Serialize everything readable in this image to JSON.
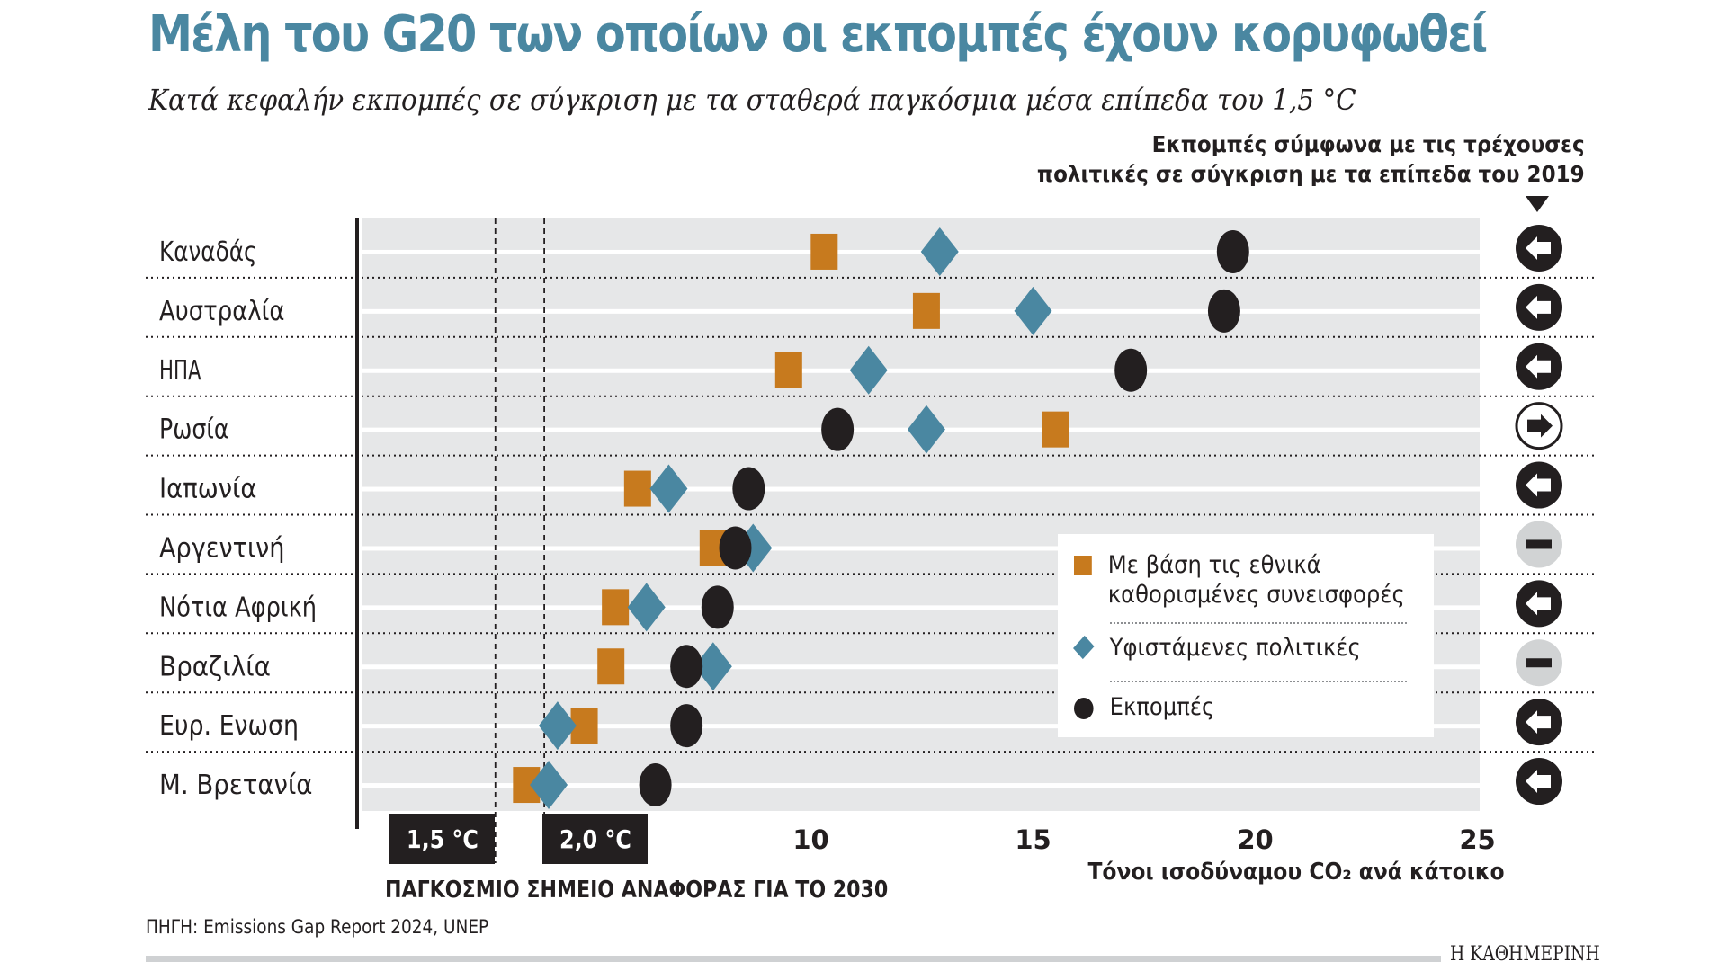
{
  "header": {
    "title": "Μέλη του G20 των οποίων οι εκπομπές έχουν κορυφωθεί",
    "subtitle": "Κατά κεφαλήν εκπομπές σε σύγκριση με τα σταθερά παγκόσμια μέσα επίπεδα του 1,5 °C",
    "right_header_line1": "Εκπομπές σύμφωνα με τις τρέχουσες",
    "right_header_line2": "πολιτικές σε σύγκριση με τα επίπεδα του 2019"
  },
  "colors": {
    "title": "#4a87a1",
    "ndc": "#c77a1e",
    "policies": "#4a87a1",
    "emissions": "#231f20",
    "plot_bg": "#e6e7e8",
    "neutral_icon": "#d1d3d4"
  },
  "chart_data": {
    "type": "scatter",
    "title": "Μέλη του G20 των οποίων οι εκπομπές έχουν κορυφωθεί",
    "subtitle": "Κατά κεφαλήν εκπομπές σε σύγκριση με τα σταθερά παγκόσμια μέσα επίπεδα του 1,5 °C",
    "xlabel": "Τόνοι ισοδύναμου CO₂ ανά κάτοικο",
    "ylabel": "",
    "xlim": [
      0,
      25
    ],
    "xticks": [
      10,
      15,
      20,
      25
    ],
    "grid": true,
    "legend_position": "middle-right",
    "categories": [
      "Καναδάς",
      "Αυστραλία",
      "ΗΠΑ",
      "Ρωσία",
      "Ιαπωνία",
      "Αργεντινή",
      "Νότια Αφρική",
      "Βραζιλία",
      "Ευρ. Ενωση",
      "Μ. Βρετανία"
    ],
    "series": [
      {
        "name": "Με βάση τις εθνικά καθορισμένες συνεισφορές",
        "marker": "square",
        "color": "#c77a1e",
        "values": [
          10.3,
          12.6,
          9.5,
          15.5,
          6.1,
          7.8,
          5.6,
          5.5,
          4.9,
          3.6
        ]
      },
      {
        "name": "Υφιστάμενες πολιτικές",
        "marker": "diamond",
        "color": "#4a87a1",
        "values": [
          12.9,
          15.0,
          11.3,
          12.6,
          6.8,
          8.7,
          6.3,
          7.8,
          4.3,
          4.1
        ]
      },
      {
        "name": "Εκπομπές",
        "marker": "circle",
        "color": "#231f20",
        "values": [
          19.5,
          19.3,
          17.2,
          10.6,
          8.6,
          8.3,
          7.9,
          7.2,
          7.2,
          6.5
        ]
      }
    ],
    "reference_lines": [
      {
        "label": "1,5 °C",
        "value": 2.9
      },
      {
        "label": "2,0 °C",
        "value": 4.0
      }
    ],
    "reference_caption": "ΠΑΓΚΟΣΜΙΟ ΣΗΜΕΙΟ ΑΝΑΦΟΡΑΣ ΓΙΑ ΤΟ 2030",
    "trend_vs_2019": [
      "decrease",
      "decrease",
      "decrease",
      "increase",
      "decrease",
      "stable",
      "decrease",
      "stable",
      "decrease",
      "decrease"
    ],
    "trend_icons": {
      "decrease": "arrow-left-icon",
      "increase": "arrow-right-icon",
      "stable": "minus-icon"
    }
  },
  "legend": {
    "ndc_line1": "Με βάση τις εθνικά",
    "ndc_line2": "καθορισμένες συνεισφορές",
    "policies": "Υφιστάμενες πολιτικές",
    "emissions": "Εκπομπές"
  },
  "footer": {
    "source": "ΠΗΓΗ: Emissions Gap Report 2024, UNEP",
    "brand": "Η ΚΑΘΗΜΕΡΙΝΗ"
  }
}
